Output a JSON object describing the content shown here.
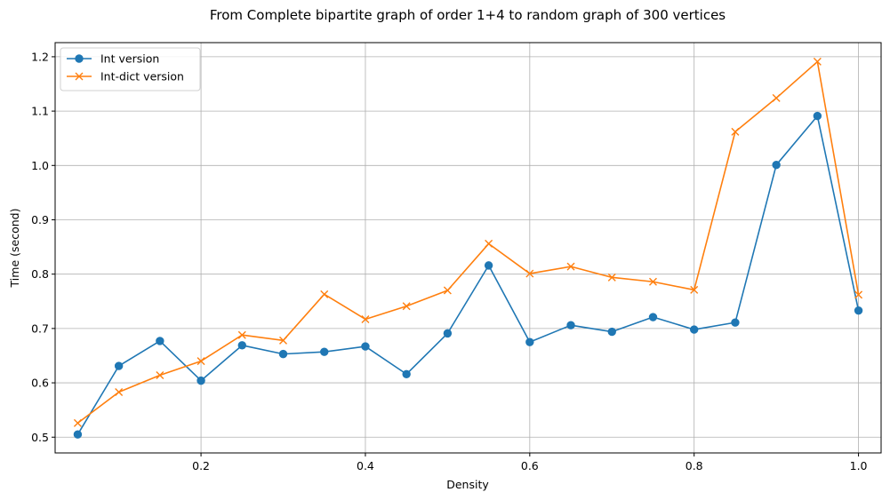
{
  "chart_data": {
    "type": "line",
    "title": "From Complete bipartite graph of order 1+4 to random graph of 300 vertices",
    "xlabel": "Density",
    "ylabel": "Time (second)",
    "xlim": [
      0.0225,
      1.0275
    ],
    "ylim": [
      0.471,
      1.226
    ],
    "xticks": [
      0.2,
      0.4,
      0.6,
      0.8,
      1.0
    ],
    "xtick_labels": [
      "0.2",
      "0.4",
      "0.6",
      "0.8",
      "1.0"
    ],
    "yticks": [
      0.5,
      0.6,
      0.7,
      0.8,
      0.9,
      1.0,
      1.1,
      1.2
    ],
    "ytick_labels": [
      "0.5",
      "0.6",
      "0.7",
      "0.8",
      "0.9",
      "1.0",
      "1.1",
      "1.2"
    ],
    "grid": true,
    "legend_position": "top-left",
    "x": [
      0.05,
      0.1,
      0.15,
      0.2,
      0.25,
      0.3,
      0.35,
      0.4,
      0.45,
      0.5,
      0.55,
      0.6,
      0.65,
      0.7,
      0.75,
      0.8,
      0.85,
      0.9,
      0.95,
      1.0
    ],
    "series": [
      {
        "name": "Int version",
        "color": "#1f77b4",
        "marker": "circle",
        "values": [
          0.505,
          0.631,
          0.677,
          0.604,
          0.669,
          0.653,
          0.657,
          0.667,
          0.616,
          0.691,
          0.816,
          0.675,
          0.706,
          0.694,
          0.721,
          0.698,
          0.711,
          1.001,
          1.091,
          0.733
        ]
      },
      {
        "name": "Int-dict version",
        "color": "#ff7f0e",
        "marker": "x",
        "values": [
          0.526,
          0.583,
          0.614,
          0.64,
          0.688,
          0.678,
          0.763,
          0.717,
          0.741,
          0.77,
          0.856,
          0.801,
          0.814,
          0.794,
          0.786,
          0.771,
          1.062,
          1.124,
          1.191,
          0.762
        ]
      }
    ]
  }
}
